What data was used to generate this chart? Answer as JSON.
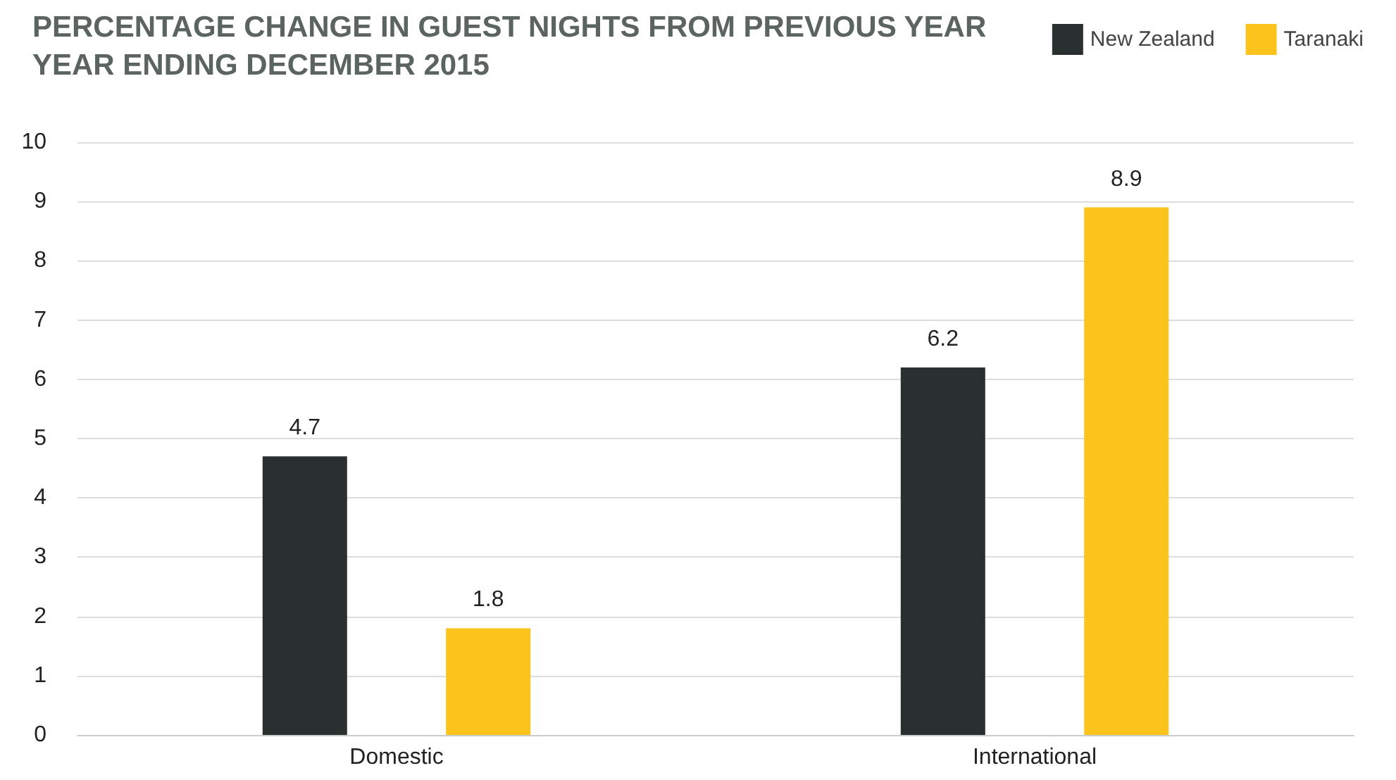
{
  "chart_data": {
    "type": "bar",
    "title": "PERCENTAGE CHANGE IN GUEST NIGHTS FROM PREVIOUS YEAR",
    "subtitle": "YEAR ENDING DECEMBER 2015",
    "categories": [
      "Domestic",
      "International"
    ],
    "series": [
      {
        "name": "New Zealand",
        "color": "#2a2f30",
        "values": [
          4.7,
          6.2
        ]
      },
      {
        "name": "Taranaki",
        "color": "#fbc31c",
        "values": [
          1.8,
          8.9
        ]
      }
    ],
    "ylim": [
      0,
      10
    ],
    "yticks": [
      0,
      1,
      2,
      3,
      4,
      5,
      6,
      7,
      8,
      9,
      10
    ],
    "grid": "y",
    "legend": "top right",
    "data_labels": true
  }
}
